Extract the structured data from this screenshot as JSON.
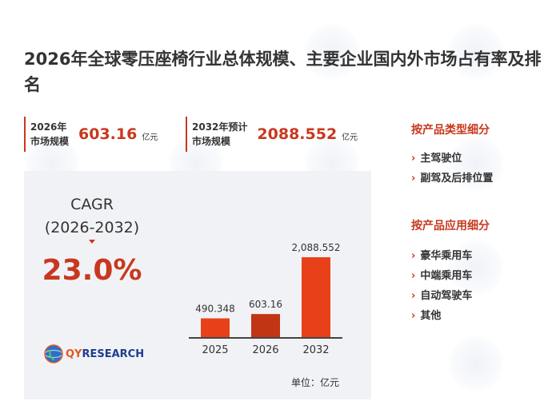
{
  "title": "2026年全球零压座椅行业总体规模、主要企业国内外市场占有率及排名",
  "stats": [
    {
      "label_line1": "2026年",
      "label_line2": "市场规模",
      "value": "603.16",
      "unit": "亿元"
    },
    {
      "label_line1": "2032年预计",
      "label_line2": "市场规模",
      "value": "2088.552",
      "unit": "亿元"
    }
  ],
  "cagr": {
    "label": "CAGR",
    "period": "(2026-2032)",
    "value": "23.0%"
  },
  "logo": {
    "text_q": "QY",
    "text_rest": "RESEARCH"
  },
  "unit_note": "单位：亿元",
  "segments": {
    "by_type": {
      "title": "按产品类型细分",
      "items": [
        "主驾驶位",
        "副驾及后排位置"
      ]
    },
    "by_application": {
      "title": "按产品应用细分",
      "items": [
        "豪华乘用车",
        "中端乘用车",
        "自动驾驶车",
        "其他"
      ]
    }
  },
  "colors": {
    "accent": "#c8381e",
    "bar_2025": "#e8411a",
    "bar_2026": "#c23514",
    "bar_2032": "#e8411a"
  },
  "chart_data": {
    "type": "bar",
    "categories": [
      "2025",
      "2026",
      "2032"
    ],
    "values": [
      490.348,
      603.16,
      2088.552
    ],
    "data_labels": [
      "490.348",
      "603.16",
      "2,088.552"
    ],
    "ylim": [
      0,
      2088.552
    ],
    "title": "",
    "xlabel": "",
    "ylabel": "单位：亿元",
    "grid": false
  }
}
